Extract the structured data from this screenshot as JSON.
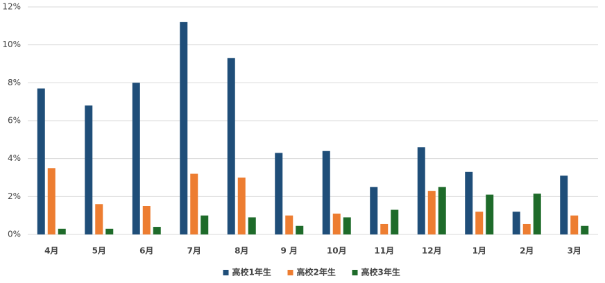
{
  "chart_data": {
    "type": "bar",
    "categories": [
      "4月",
      "5月",
      "6月",
      "7月",
      "8月",
      "9 月",
      "10月",
      "11月",
      "12月",
      "1月",
      "2月",
      "3月"
    ],
    "series": [
      {
        "name": "高校1年生",
        "color": "#1f4e79",
        "values": [
          7.7,
          6.8,
          8.0,
          11.2,
          9.3,
          4.3,
          4.4,
          2.5,
          4.6,
          3.3,
          1.2,
          3.1
        ]
      },
      {
        "name": "高校2年生",
        "color": "#ed7d31",
        "values": [
          3.5,
          1.6,
          1.5,
          3.2,
          3.0,
          1.0,
          1.1,
          0.55,
          2.3,
          1.2,
          0.55,
          1.0
        ]
      },
      {
        "name": "高校3年生",
        "color": "#1e6b2a",
        "values": [
          0.3,
          0.3,
          0.4,
          1.0,
          0.9,
          0.45,
          0.9,
          1.3,
          2.5,
          2.1,
          2.15,
          0.45
        ]
      }
    ],
    "ylim": [
      0,
      12
    ],
    "yticks": [
      {
        "value": 0,
        "label": "0%"
      },
      {
        "value": 2,
        "label": "2%"
      },
      {
        "value": 4,
        "label": "4%"
      },
      {
        "value": 6,
        "label": "6%"
      },
      {
        "value": 8,
        "label": "8%"
      },
      {
        "value": 10,
        "label": "10%"
      },
      {
        "value": 12,
        "label": "12%"
      }
    ],
    "grid": true,
    "legend": "bottom"
  }
}
